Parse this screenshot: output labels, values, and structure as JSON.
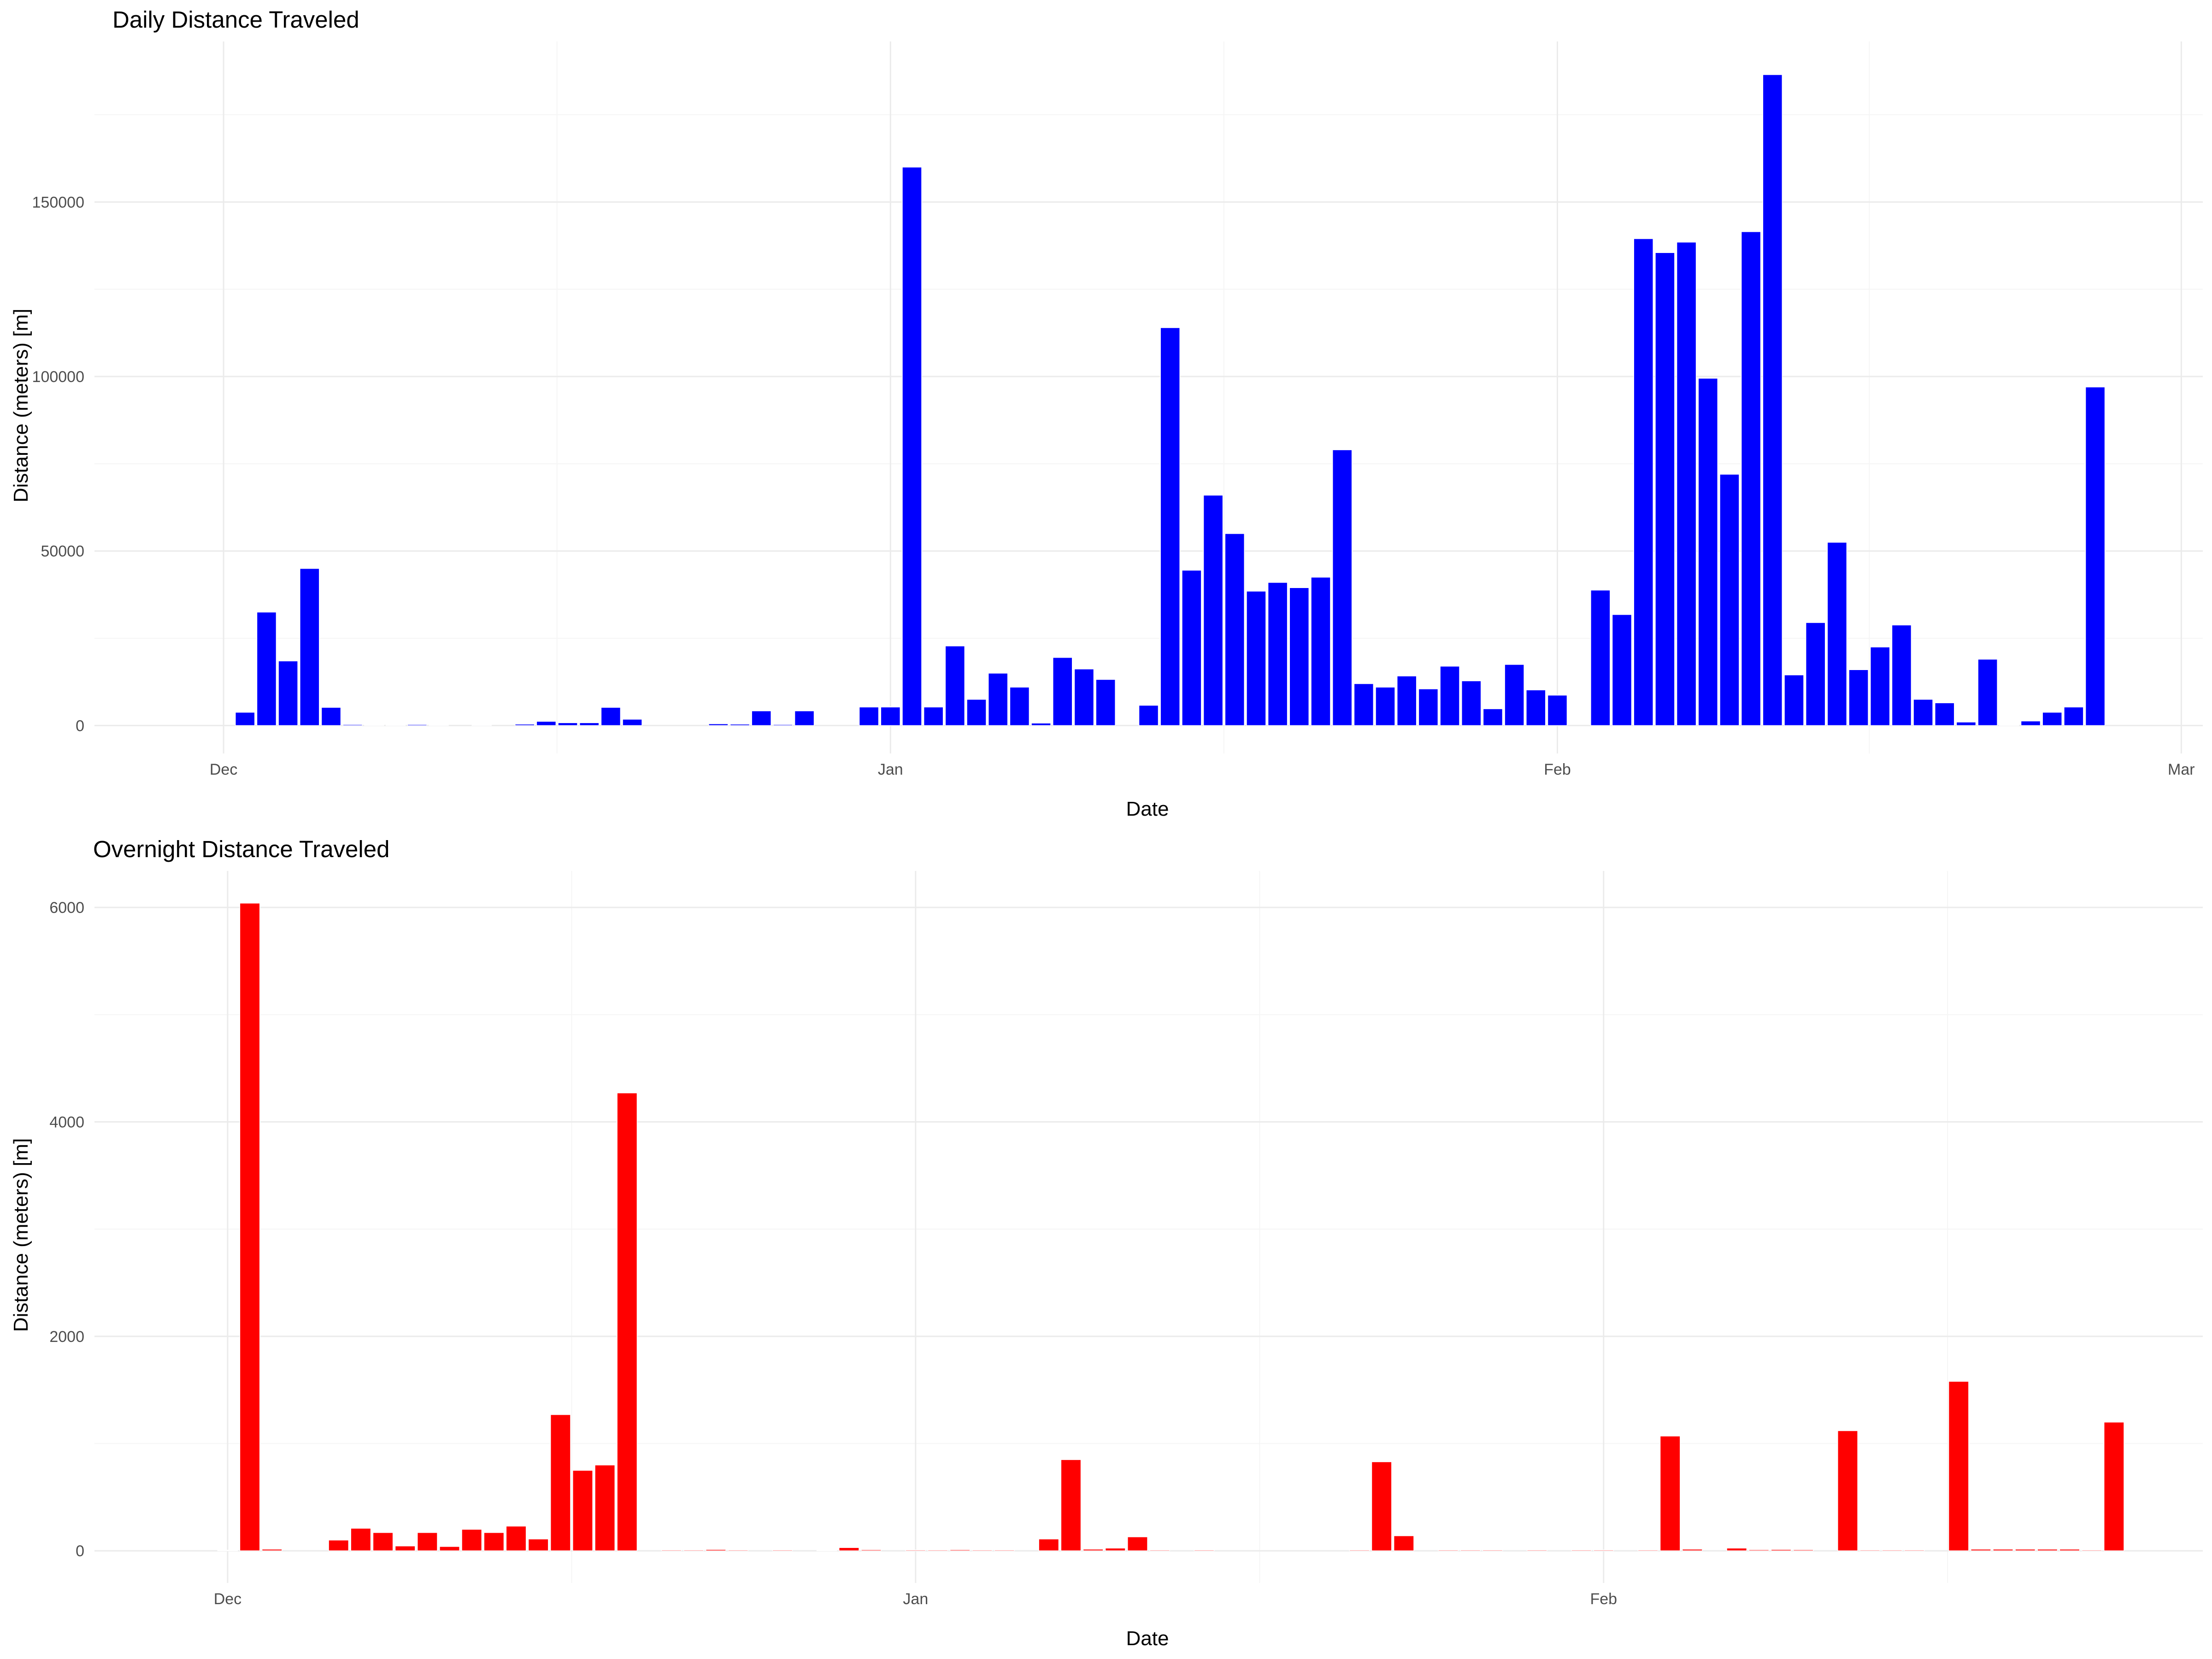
{
  "chart_data": [
    {
      "type": "bar",
      "title": "Daily Distance Traveled",
      "xlabel": "Date",
      "ylabel": "Distance (meters) [m]",
      "color": "#0000ff",
      "x_range": [
        "2023-11-25",
        "2024-03-02"
      ],
      "ylim": [
        -8000,
        196000
      ],
      "y_ticks": [
        0,
        50000,
        100000,
        150000
      ],
      "x_ticks": [
        {
          "date": "2023-12-01",
          "label": "Dec"
        },
        {
          "date": "2024-01-01",
          "label": "Jan"
        },
        {
          "date": "2024-02-01",
          "label": "Feb"
        },
        {
          "date": "2024-03-01",
          "label": "Mar"
        }
      ],
      "grid": true,
      "x": [
        "2023-12-02",
        "2023-12-03",
        "2023-12-04",
        "2023-12-05",
        "2023-12-06",
        "2023-12-07",
        "2023-12-08",
        "2023-12-09",
        "2023-12-10",
        "2023-12-11",
        "2023-12-13",
        "2023-12-15",
        "2023-12-16",
        "2023-12-17",
        "2023-12-18",
        "2023-12-19",
        "2023-12-20",
        "2023-12-24",
        "2023-12-25",
        "2023-12-26",
        "2023-12-27",
        "2023-12-28",
        "2023-12-31",
        "2024-01-01",
        "2024-01-02",
        "2024-01-03",
        "2024-01-04",
        "2024-01-05",
        "2024-01-06",
        "2024-01-07",
        "2024-01-08",
        "2024-01-09",
        "2024-01-10",
        "2024-01-11",
        "2024-01-13",
        "2024-01-14",
        "2024-01-15",
        "2024-01-16",
        "2024-01-17",
        "2024-01-18",
        "2024-01-19",
        "2024-01-20",
        "2024-01-21",
        "2024-01-22",
        "2024-01-23",
        "2024-01-24",
        "2024-01-25",
        "2024-01-26",
        "2024-01-27",
        "2024-01-28",
        "2024-01-29",
        "2024-01-30",
        "2024-01-31",
        "2024-02-01",
        "2024-02-03",
        "2024-02-04",
        "2024-02-05",
        "2024-02-06",
        "2024-02-07",
        "2024-02-08",
        "2024-02-09",
        "2024-02-10",
        "2024-02-11",
        "2024-02-12",
        "2024-02-13",
        "2024-02-14",
        "2024-02-15",
        "2024-02-16",
        "2024-02-17",
        "2024-02-18",
        "2024-02-19",
        "2024-02-20",
        "2024-02-21",
        "2024-02-22",
        "2024-02-23",
        "2024-02-24",
        "2024-02-25",
        "2024-02-26"
      ],
      "values": [
        3800,
        32500,
        18500,
        45000,
        5200,
        300,
        200,
        200,
        300,
        200,
        200,
        400,
        1200,
        800,
        800,
        5200,
        1800,
        500,
        400,
        4200,
        300,
        4200,
        5300,
        5300,
        160000,
        5300,
        22800,
        7500,
        15000,
        11000,
        700,
        19500,
        16200,
        13200,
        5800,
        114000,
        44500,
        66000,
        55000,
        38500,
        41000,
        39500,
        42500,
        79000,
        12000,
        11000,
        14200,
        10500,
        17000,
        12800,
        4800,
        17500,
        10200,
        8700,
        38800,
        31800,
        139500,
        135500,
        138500,
        99500,
        72000,
        141500,
        186500,
        14500,
        29500,
        52500,
        16000,
        22500,
        28800,
        7500,
        6500,
        1000,
        19000,
        200,
        1300,
        3800,
        5300,
        97000
      ]
    },
    {
      "type": "bar",
      "title": "Overnight Distance Traveled",
      "xlabel": "Date",
      "ylabel": "Distance (meters) [m]",
      "color": "#ff0000",
      "x_range": [
        "2023-11-25",
        "2024-02-28"
      ],
      "ylim": [
        -300,
        6340
      ],
      "y_ticks": [
        0,
        2000,
        4000,
        6000
      ],
      "x_ticks": [
        {
          "date": "2023-12-01",
          "label": "Dec"
        },
        {
          "date": "2024-01-01",
          "label": "Jan"
        },
        {
          "date": "2024-02-01",
          "label": "Feb"
        }
      ],
      "grid": true,
      "x": [
        "2023-12-01",
        "2023-12-02",
        "2023-12-03",
        "2023-12-06",
        "2023-12-07",
        "2023-12-08",
        "2023-12-09",
        "2023-12-10",
        "2023-12-11",
        "2023-12-12",
        "2023-12-13",
        "2023-12-14",
        "2023-12-15",
        "2023-12-16",
        "2023-12-17",
        "2023-12-18",
        "2023-12-19",
        "2023-12-21",
        "2023-12-22",
        "2023-12-23",
        "2023-12-24",
        "2023-12-26",
        "2023-12-28",
        "2023-12-29",
        "2023-12-30",
        "2024-01-01",
        "2024-01-02",
        "2024-01-03",
        "2024-01-04",
        "2024-01-05",
        "2024-01-07",
        "2024-01-08",
        "2024-01-09",
        "2024-01-10",
        "2024-01-11",
        "2024-01-12",
        "2024-01-14",
        "2024-01-21",
        "2024-01-22",
        "2024-01-23",
        "2024-01-25",
        "2024-01-26",
        "2024-01-27",
        "2024-01-29",
        "2024-01-31",
        "2024-02-01",
        "2024-02-03",
        "2024-02-04",
        "2024-02-05",
        "2024-02-07",
        "2024-02-08",
        "2024-02-09",
        "2024-02-10",
        "2024-02-12",
        "2024-02-13",
        "2024-02-14",
        "2024-02-15",
        "2024-02-17",
        "2024-02-18",
        "2024-02-19",
        "2024-02-20",
        "2024-02-21",
        "2024-02-22",
        "2024-02-23",
        "2024-02-24"
      ],
      "values": [
        6,
        6040,
        15,
        100,
        210,
        170,
        45,
        170,
        40,
        200,
        170,
        230,
        110,
        1270,
        750,
        800,
        4270,
        8,
        8,
        12,
        8,
        8,
        6,
        30,
        10,
        8,
        8,
        10,
        8,
        8,
        110,
        850,
        15,
        25,
        130,
        8,
        8,
        8,
        830,
        140,
        8,
        8,
        8,
        8,
        8,
        8,
        8,
        1070,
        15,
        25,
        10,
        12,
        10,
        1120,
        8,
        8,
        8,
        1580,
        15,
        15,
        15,
        15,
        15,
        8,
        1200
      ]
    }
  ]
}
